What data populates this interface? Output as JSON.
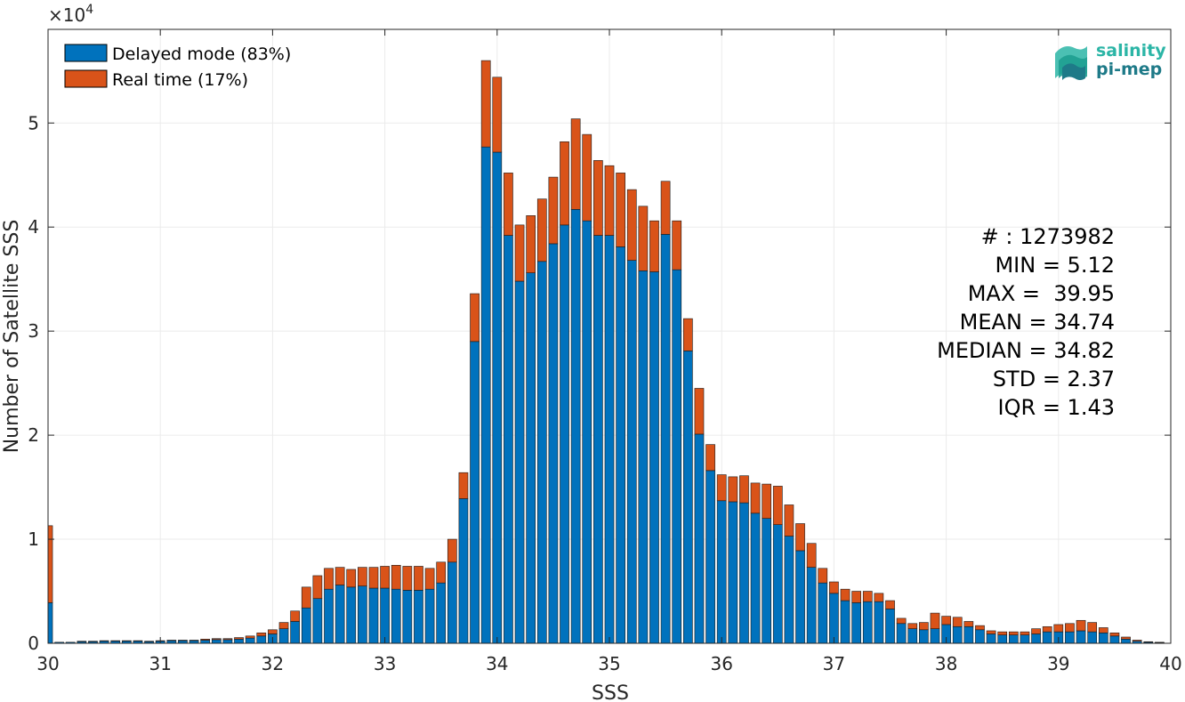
{
  "chart_data": {
    "type": "bar",
    "stacked": true,
    "xlabel": "SSS",
    "ylabel": "Number of Satellite SSS",
    "y_multiplier": "×10",
    "y_multiplier_exp": "4",
    "xlim": [
      30,
      40
    ],
    "ylim": [
      0,
      59000
    ],
    "grid": true,
    "legend_position": "top-left",
    "x_ticks": [
      "30",
      "31",
      "32",
      "33",
      "34",
      "35",
      "36",
      "37",
      "38",
      "39",
      "40"
    ],
    "y_ticks": [
      "0",
      "1",
      "2",
      "3",
      "4",
      "5"
    ],
    "bin_width": 0.1,
    "x": [
      30.0,
      30.1,
      30.2,
      30.3,
      30.4,
      30.5,
      30.6,
      30.7,
      30.8,
      30.9,
      31.0,
      31.1,
      31.2,
      31.3,
      31.4,
      31.5,
      31.6,
      31.7,
      31.8,
      31.9,
      32.0,
      32.1,
      32.2,
      32.3,
      32.4,
      32.5,
      32.6,
      32.7,
      32.8,
      32.9,
      33.0,
      33.1,
      33.2,
      33.3,
      33.4,
      33.5,
      33.6,
      33.7,
      33.8,
      33.9,
      34.0,
      34.1,
      34.2,
      34.3,
      34.4,
      34.5,
      34.6,
      34.7,
      34.8,
      34.9,
      35.0,
      35.1,
      35.2,
      35.3,
      35.4,
      35.5,
      35.6,
      35.7,
      35.8,
      35.9,
      36.0,
      36.1,
      36.2,
      36.3,
      36.4,
      36.5,
      36.6,
      36.7,
      36.8,
      36.9,
      37.0,
      37.1,
      37.2,
      37.3,
      37.4,
      37.5,
      37.6,
      37.7,
      37.8,
      37.9,
      38.0,
      38.1,
      38.2,
      38.3,
      38.4,
      38.5,
      38.6,
      38.7,
      38.8,
      38.9,
      39.0,
      39.1,
      39.2,
      39.3,
      39.4,
      39.5,
      39.6,
      39.7,
      39.8,
      39.9
    ],
    "series": [
      {
        "name": "Delayed mode (83%)",
        "color": "#0072BD",
        "values": [
          3900,
          100,
          100,
          150,
          150,
          200,
          200,
          200,
          200,
          150,
          200,
          250,
          250,
          250,
          300,
          350,
          350,
          400,
          500,
          700,
          900,
          1400,
          2100,
          3400,
          4300,
          5200,
          5600,
          5400,
          5500,
          5300,
          5300,
          5200,
          5100,
          5100,
          5200,
          5800,
          7800,
          13900,
          29000,
          47700,
          47200,
          39200,
          34800,
          35600,
          36700,
          38400,
          40200,
          41700,
          40600,
          39200,
          39200,
          38100,
          36800,
          35800,
          35700,
          39300,
          35900,
          28100,
          20100,
          16600,
          13700,
          13600,
          13500,
          12500,
          12000,
          11400,
          10300,
          8900,
          7300,
          5800,
          4800,
          4100,
          3900,
          4000,
          4000,
          3300,
          1900,
          1400,
          1300,
          1400,
          1800,
          1600,
          1600,
          1300,
          900,
          800,
          800,
          800,
          900,
          1100,
          1100,
          1100,
          1200,
          1100,
          1000,
          700,
          400,
          200,
          100,
          50
        ]
      },
      {
        "name": "Real time (17%)",
        "color": "#D95319",
        "values": [
          7400,
          0,
          0,
          50,
          50,
          50,
          50,
          50,
          50,
          50,
          50,
          50,
          50,
          50,
          100,
          100,
          100,
          150,
          200,
          300,
          400,
          600,
          1000,
          2000,
          2200,
          2000,
          1700,
          1700,
          1800,
          2000,
          2100,
          2300,
          2300,
          2300,
          2000,
          2000,
          2200,
          2500,
          4600,
          8300,
          7200,
          6000,
          5400,
          5500,
          6000,
          6400,
          8000,
          8700,
          8300,
          7200,
          6700,
          7100,
          6800,
          6200,
          4900,
          5100,
          4700,
          3100,
          4400,
          2500,
          2500,
          2400,
          2600,
          2900,
          3300,
          3700,
          3000,
          2600,
          2300,
          1400,
          1100,
          1100,
          1100,
          1000,
          800,
          800,
          500,
          500,
          700,
          1500,
          800,
          900,
          500,
          400,
          300,
          300,
          300,
          300,
          500,
          500,
          700,
          800,
          1000,
          900,
          500,
          300,
          200,
          100,
          50,
          50
        ]
      }
    ]
  },
  "stats": {
    "lines": [
      "# : 1273982",
      "MIN = 5.12",
      "MAX =  39.95",
      "MEAN = 34.74",
      "MEDIAN = 34.82",
      "STD = 2.37",
      "IQR = 1.43"
    ]
  },
  "logo": {
    "line1": "salinity",
    "line2": "pi-mep",
    "colors": [
      "#2BB5A6",
      "#1E7A88"
    ]
  },
  "colors": {
    "axis": "#262626",
    "grid": "#EBEBEB",
    "bar_edge": "#1a1a1a"
  }
}
